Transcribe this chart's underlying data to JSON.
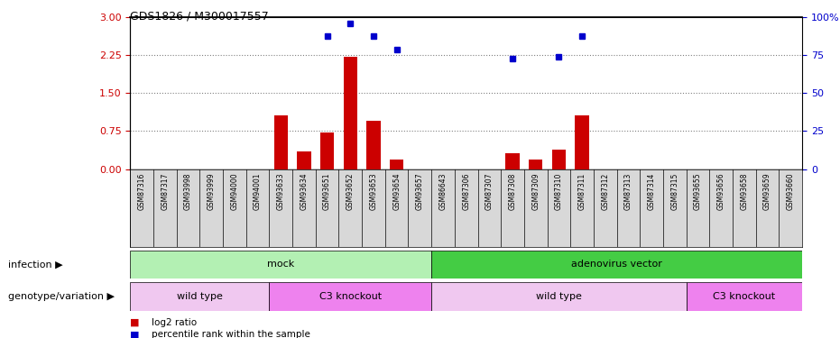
{
  "title": "GDS1826 / M300017557",
  "samples": [
    "GSM87316",
    "GSM87317",
    "GSM93998",
    "GSM93999",
    "GSM94000",
    "GSM94001",
    "GSM93633",
    "GSM93634",
    "GSM93651",
    "GSM93652",
    "GSM93653",
    "GSM93654",
    "GSM93657",
    "GSM86643",
    "GSM87306",
    "GSM87307",
    "GSM87308",
    "GSM87309",
    "GSM87310",
    "GSM87311",
    "GSM87312",
    "GSM87313",
    "GSM87314",
    "GSM87315",
    "GSM93655",
    "GSM93656",
    "GSM93658",
    "GSM93659",
    "GSM93660"
  ],
  "log2_ratio": [
    0,
    0,
    0,
    0,
    0,
    0,
    1.05,
    0.35,
    0.72,
    2.22,
    0.95,
    0.18,
    0,
    0,
    0,
    0,
    0.32,
    0.18,
    0.38,
    1.05,
    0,
    0,
    0,
    0,
    0,
    0,
    0,
    0,
    0
  ],
  "percentile_rank": [
    null,
    null,
    null,
    null,
    null,
    null,
    null,
    null,
    2.62,
    2.87,
    2.62,
    2.35,
    null,
    null,
    null,
    null,
    2.18,
    null,
    2.22,
    2.62,
    null,
    null,
    null,
    null,
    null,
    null,
    null,
    null,
    null
  ],
  "infection_groups": [
    {
      "label": "mock",
      "start": 0,
      "end": 13,
      "color": "#b3f0b3"
    },
    {
      "label": "adenovirus vector",
      "start": 13,
      "end": 29,
      "color": "#44cc44"
    }
  ],
  "genotype_groups": [
    {
      "label": "wild type",
      "start": 0,
      "end": 6,
      "color": "#f0c8f0"
    },
    {
      "label": "C3 knockout",
      "start": 6,
      "end": 13,
      "color": "#ee82ee"
    },
    {
      "label": "wild type",
      "start": 13,
      "end": 24,
      "color": "#f0c8f0"
    },
    {
      "label": "C3 knockout",
      "start": 24,
      "end": 29,
      "color": "#ee82ee"
    }
  ],
  "ylim_left": [
    0,
    3
  ],
  "ylim_right": [
    0,
    100
  ],
  "yticks_left": [
    0,
    0.75,
    1.5,
    2.25,
    3
  ],
  "yticks_right": [
    0,
    25,
    50,
    75,
    100
  ],
  "bar_color": "#CC0000",
  "dot_color": "#0000CC",
  "infection_label": "infection",
  "genotype_label": "genotype/variation",
  "legend_bar": "log2 ratio",
  "legend_dot": "percentile rank within the sample",
  "xticklabel_bg": "#d8d8d8",
  "hgrid_color": "#888888"
}
